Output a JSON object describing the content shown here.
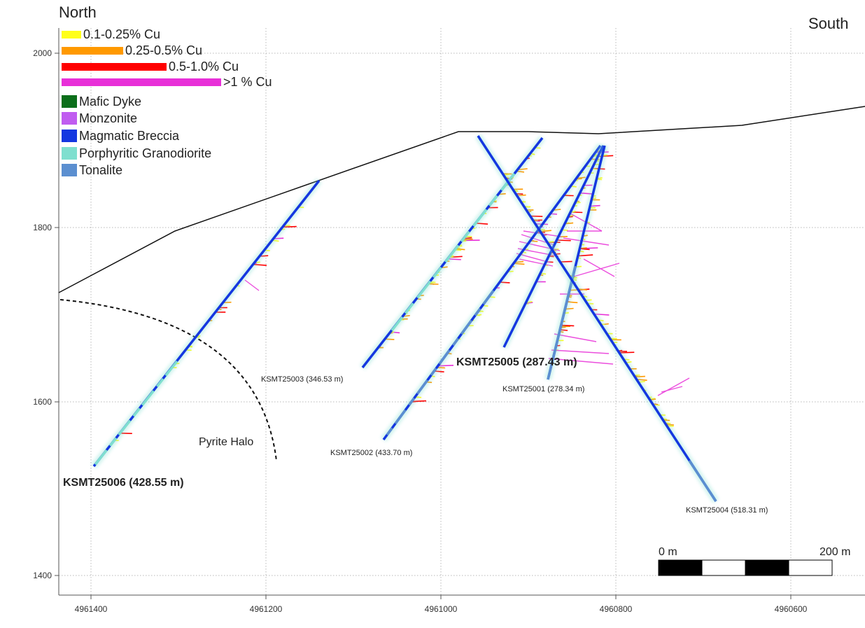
{
  "orientation": {
    "left": "North",
    "right": "South"
  },
  "legend": {
    "grades": [
      {
        "label": "0.1-0.25% Cu",
        "color": "#ffff1a"
      },
      {
        "label": "0.25-0.5% Cu",
        "color": "#ff9900"
      },
      {
        "label": "0.5-1.0% Cu",
        "color": "#ff0000"
      },
      {
        "label": ">1 % Cu",
        "color": "#e830d8"
      }
    ],
    "lithology": [
      {
        "label": "Mafic Dyke",
        "color": "#0b6e1a"
      },
      {
        "label": "Monzonite",
        "color": "#c05cf0"
      },
      {
        "label": "Magmatic Breccia",
        "color": "#1437e0"
      },
      {
        "label": "Porphyritic Granodiorite",
        "color": "#7fdfcf"
      },
      {
        "label": "Tonalite",
        "color": "#5b8fd0"
      }
    ]
  },
  "axes": {
    "elevation_ticks": [
      "2000",
      "1800",
      "1600",
      "1400"
    ],
    "northing_ticks": [
      "4961400",
      "4961200",
      "4961000",
      "4960800",
      "4960600"
    ]
  },
  "zone_label": "Pyrite Halo",
  "scale_bar": {
    "start": "0 m",
    "end": "200 m"
  },
  "drillholes": [
    {
      "id": "KSMT25006 (428.55 m)",
      "emphasis": true
    },
    {
      "id": "KSMT25003 (346.53 m)",
      "emphasis": false
    },
    {
      "id": "KSMT25002 (433.70 m)",
      "emphasis": false
    },
    {
      "id": "KSMT25005 (287.43 m)",
      "emphasis": true
    },
    {
      "id": "KSMT25001 (278.34 m)",
      "emphasis": false
    },
    {
      "id": "KSMT25004 (518.31 m)",
      "emphasis": false
    }
  ]
}
